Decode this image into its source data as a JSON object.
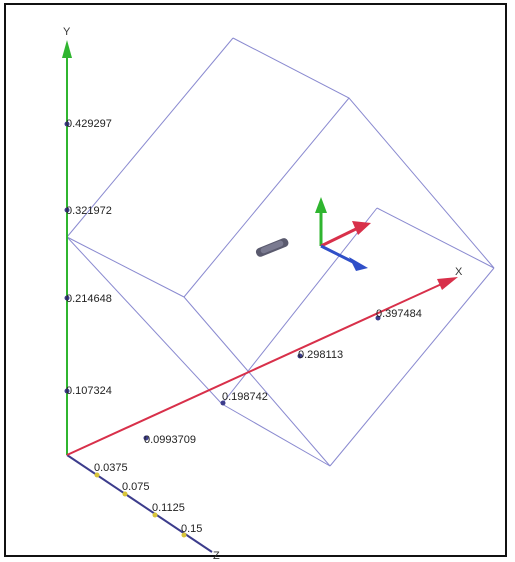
{
  "axes": {
    "y": {
      "name": "Y",
      "color": "#2fb52f",
      "ticks": [
        "0.429297",
        "0.321972",
        "0.214648",
        "0.107324"
      ]
    },
    "x": {
      "name": "X",
      "color": "#d8304a",
      "ticks": [
        "0.0993709",
        "0.198742",
        "0.298113",
        "0.397484"
      ]
    },
    "z": {
      "name": "Z",
      "color": "#3c3c8c",
      "ticks": [
        "0.0375",
        "0.075",
        "0.1125",
        "0.15"
      ]
    }
  },
  "bounding_box": {
    "color": "#8a8ad0"
  },
  "orientation_gizmo": {
    "x_color": "#d8304a",
    "y_color": "#2fb52f",
    "z_color": "#2f4fc8"
  },
  "object": {
    "color": "#5a5a6e"
  }
}
